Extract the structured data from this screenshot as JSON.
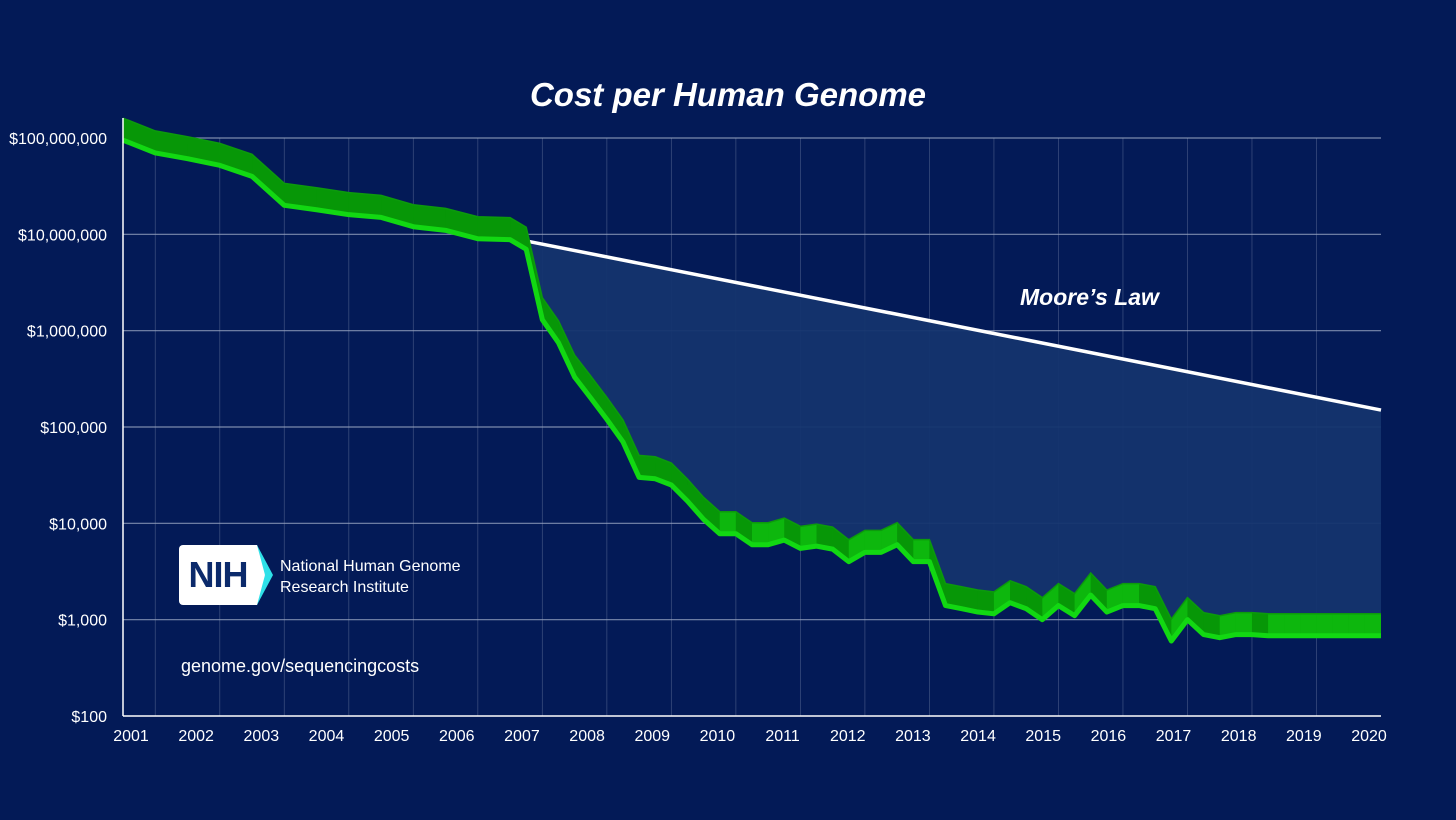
{
  "page": {
    "title": "Cost per Human Genome",
    "moore_label": "Moore’s Law",
    "logo": {
      "wordmark": "NIH",
      "org_line1": "National Human Genome",
      "org_line2": "Research Institute"
    },
    "source_url": "genome.gov/sequencingcosts"
  },
  "colors": {
    "background": "#031a57",
    "genome_line": "#12d812",
    "genome_band": "#0aa60a",
    "moore_line": "#ffffff",
    "gap_fill": "#14346e",
    "gridline": "#9aa6c2"
  },
  "chart_data": {
    "type": "line",
    "title": "Cost per Human Genome",
    "xlabel": "",
    "ylabel": "",
    "scale_y": "log10",
    "ylim": [
      100,
      100000000
    ],
    "y_ticks": [
      {
        "value": 100,
        "label": "$100"
      },
      {
        "value": 1000,
        "label": "$1,000"
      },
      {
        "value": 10000,
        "label": "$10,000"
      },
      {
        "value": 100000,
        "label": "$100,000"
      },
      {
        "value": 1000000,
        "label": "$1,000,000"
      },
      {
        "value": 10000000,
        "label": "$10,000,000"
      },
      {
        "value": 100000000,
        "label": "$100,000,000"
      }
    ],
    "xlim": [
      2001.0,
      2020.5
    ],
    "x_ticks": [
      "2001",
      "2002",
      "2003",
      "2004",
      "2005",
      "2006",
      "2007",
      "2008",
      "2009",
      "2010",
      "2011",
      "2012",
      "2013",
      "2014",
      "2015",
      "2016",
      "2017",
      "2018",
      "2019",
      "2020"
    ],
    "grid": true,
    "legend": "none",
    "series": [
      {
        "name": "",
        "style": "green-3d-band",
        "x": [
          2001.0,
          2001.5,
          2002.0,
          2002.5,
          2003.0,
          2003.5,
          2004.0,
          2004.5,
          2005.0,
          2005.5,
          2006.0,
          2006.5,
          2007.0,
          2007.25,
          2007.5,
          2007.75,
          2008.0,
          2008.25,
          2008.5,
          2008.75,
          2009.0,
          2009.25,
          2009.5,
          2009.75,
          2010.0,
          2010.25,
          2010.5,
          2010.75,
          2011.0,
          2011.25,
          2011.5,
          2011.75,
          2012.0,
          2012.25,
          2012.5,
          2012.75,
          2013.0,
          2013.25,
          2013.5,
          2013.75,
          2014.0,
          2014.25,
          2014.5,
          2014.75,
          2015.0,
          2015.25,
          2015.5,
          2015.75,
          2016.0,
          2016.25,
          2016.5,
          2016.75,
          2017.0,
          2017.25,
          2017.5,
          2017.75,
          2018.0,
          2018.25,
          2018.5,
          2018.75,
          2019.0,
          2019.25,
          2019.5,
          2019.75,
          2020.0,
          2020.25,
          2020.5
        ],
        "y": [
          95000000,
          70000000,
          61000000,
          52000000,
          40000000,
          20000000,
          18000000,
          16000000,
          15000000,
          12000000,
          11000000,
          9000000,
          8800000,
          7000000,
          1300000,
          750000,
          330000,
          200000,
          120000,
          70000,
          30000,
          29000,
          25000,
          17000,
          11000,
          7800,
          7800,
          6000,
          6000,
          6700,
          5500,
          5800,
          5400,
          4000,
          5000,
          5000,
          6000,
          4000,
          4000,
          1400,
          1300,
          1200,
          1150,
          1500,
          1300,
          1000,
          1400,
          1100,
          1800,
          1200,
          1400,
          1400,
          1300,
          600,
          1000,
          700,
          650,
          700,
          700,
          680,
          680,
          680,
          680,
          680,
          680,
          680,
          680
        ]
      },
      {
        "name": "",
        "style": "white-line",
        "x": [
          2004.0,
          2020.5
        ],
        "y": [
          23000000,
          150000
        ]
      }
    ]
  }
}
